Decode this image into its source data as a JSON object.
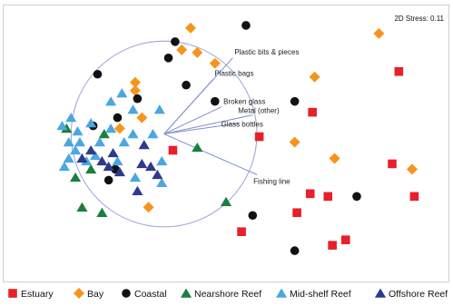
{
  "chart_data": {
    "type": "scatter",
    "stress_label": "2D Stress: 0.11",
    "xlim": [
      0,
      100
    ],
    "ylim": [
      0,
      100
    ],
    "circle": {
      "cx": 36,
      "cy": 54,
      "r": 26
    },
    "vectors": [
      {
        "label": "Plastic bits & pieces",
        "x": 51.5,
        "y": 82
      },
      {
        "label": "Plastic bags",
        "x": 47,
        "y": 74
      },
      {
        "label": "Broken glass",
        "x": 49,
        "y": 64
      },
      {
        "label": "Metal (other)",
        "x": 56,
        "y": 61
      },
      {
        "label": "Glass bottles",
        "x": 53,
        "y": 58
      },
      {
        "label": "Fishing line",
        "x": 57,
        "y": 39
      }
    ],
    "series": [
      {
        "name": "Estuary",
        "marker": "square",
        "color": "#e8202a",
        "points": [
          {
            "x": 89,
            "y": 77
          },
          {
            "x": 69.5,
            "y": 62
          },
          {
            "x": 57.5,
            "y": 53
          },
          {
            "x": 38,
            "y": 48
          },
          {
            "x": 87.5,
            "y": 43
          },
          {
            "x": 92.5,
            "y": 31
          },
          {
            "x": 69,
            "y": 32
          },
          {
            "x": 73,
            "y": 31
          },
          {
            "x": 66,
            "y": 25
          },
          {
            "x": 53.5,
            "y": 18
          },
          {
            "x": 77,
            "y": 15
          },
          {
            "x": 74,
            "y": 13
          }
        ]
      },
      {
        "name": "Bay",
        "marker": "diamond",
        "color": "#f7941d",
        "points": [
          {
            "x": 42,
            "y": 93
          },
          {
            "x": 84.5,
            "y": 91
          },
          {
            "x": 40,
            "y": 85
          },
          {
            "x": 43.5,
            "y": 84
          },
          {
            "x": 47.5,
            "y": 80
          },
          {
            "x": 70,
            "y": 75
          },
          {
            "x": 29.5,
            "y": 73
          },
          {
            "x": 29.5,
            "y": 70
          },
          {
            "x": 31,
            "y": 60
          },
          {
            "x": 26,
            "y": 56
          },
          {
            "x": 65.5,
            "y": 51
          },
          {
            "x": 74.5,
            "y": 45
          },
          {
            "x": 92,
            "y": 41
          },
          {
            "x": 32.5,
            "y": 27
          }
        ]
      },
      {
        "name": "Coastal",
        "marker": "circle",
        "color": "#111111",
        "points": [
          {
            "x": 54.5,
            "y": 94
          },
          {
            "x": 38.5,
            "y": 88
          },
          {
            "x": 37,
            "y": 82
          },
          {
            "x": 21,
            "y": 76
          },
          {
            "x": 41,
            "y": 72
          },
          {
            "x": 30,
            "y": 67
          },
          {
            "x": 47.5,
            "y": 66
          },
          {
            "x": 65.5,
            "y": 66
          },
          {
            "x": 25.5,
            "y": 60
          },
          {
            "x": 20,
            "y": 57
          },
          {
            "x": 25,
            "y": 41
          },
          {
            "x": 23.5,
            "y": 37
          },
          {
            "x": 79.5,
            "y": 31
          },
          {
            "x": 56,
            "y": 24
          },
          {
            "x": 65.5,
            "y": 11
          }
        ]
      },
      {
        "name": "Nearshore Reef",
        "marker": "triangle",
        "color": "#1a7f3b",
        "points": [
          {
            "x": 14,
            "y": 56
          },
          {
            "x": 22.5,
            "y": 54
          },
          {
            "x": 43.5,
            "y": 49
          },
          {
            "x": 19.5,
            "y": 41
          },
          {
            "x": 16,
            "y": 38
          },
          {
            "x": 17.5,
            "y": 27
          },
          {
            "x": 50,
            "y": 29
          },
          {
            "x": 22,
            "y": 25
          }
        ]
      },
      {
        "name": "Mid-shelf Reef",
        "marker": "triangle",
        "color": "#4aa7e0",
        "points": [
          {
            "x": 26.5,
            "y": 69
          },
          {
            "x": 24,
            "y": 66
          },
          {
            "x": 29,
            "y": 63
          },
          {
            "x": 35,
            "y": 63
          },
          {
            "x": 15,
            "y": 60
          },
          {
            "x": 19.5,
            "y": 58
          },
          {
            "x": 13,
            "y": 57
          },
          {
            "x": 16.5,
            "y": 55
          },
          {
            "x": 24,
            "y": 56
          },
          {
            "x": 29,
            "y": 54
          },
          {
            "x": 33.5,
            "y": 54
          },
          {
            "x": 14.5,
            "y": 51
          },
          {
            "x": 17,
            "y": 51
          },
          {
            "x": 21.5,
            "y": 51
          },
          {
            "x": 27,
            "y": 51
          },
          {
            "x": 16,
            "y": 48
          },
          {
            "x": 20.5,
            "y": 46
          },
          {
            "x": 14.5,
            "y": 45
          },
          {
            "x": 18.5,
            "y": 44
          },
          {
            "x": 25.5,
            "y": 44
          },
          {
            "x": 13.5,
            "y": 42
          },
          {
            "x": 35.5,
            "y": 44
          },
          {
            "x": 29.5,
            "y": 38
          },
          {
            "x": 35.5,
            "y": 36
          }
        ]
      },
      {
        "name": "Offshore Reef",
        "marker": "triangle",
        "color": "#2e3a8c",
        "points": [
          {
            "x": 31.5,
            "y": 50
          },
          {
            "x": 19.5,
            "y": 48
          },
          {
            "x": 24.5,
            "y": 47
          },
          {
            "x": 17.5,
            "y": 45
          },
          {
            "x": 22,
            "y": 44
          },
          {
            "x": 23.5,
            "y": 42
          },
          {
            "x": 31,
            "y": 43
          },
          {
            "x": 33,
            "y": 42
          },
          {
            "x": 26,
            "y": 40
          },
          {
            "x": 34.5,
            "y": 39
          },
          {
            "x": 30,
            "y": 33
          }
        ]
      }
    ]
  }
}
